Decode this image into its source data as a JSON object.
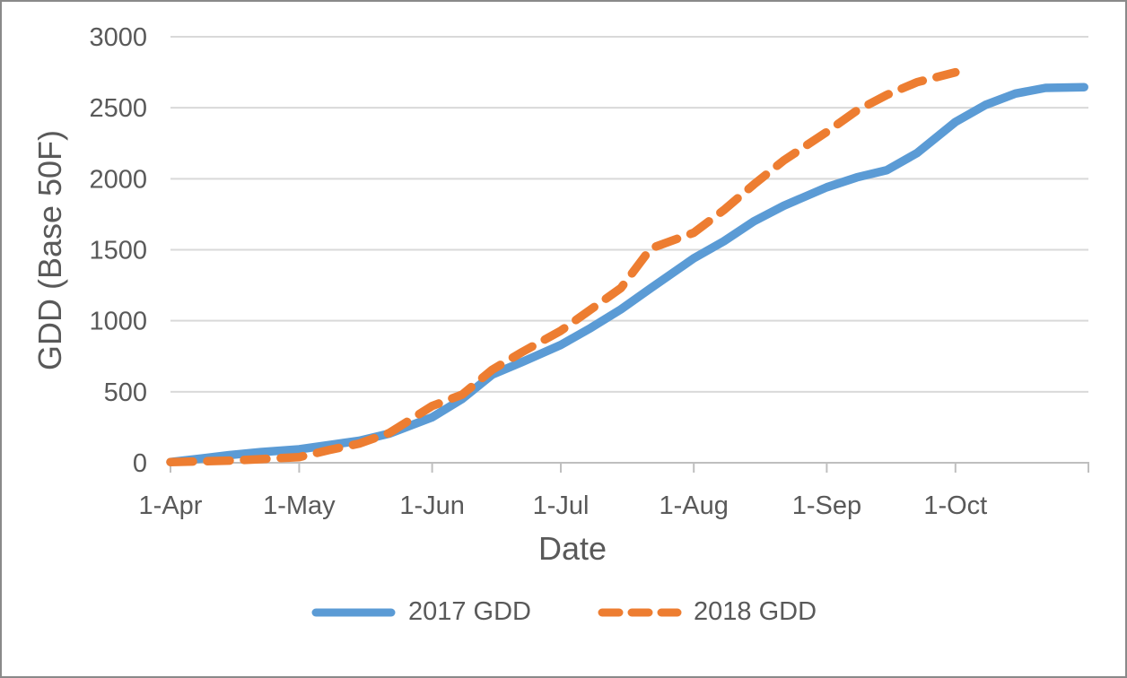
{
  "figure": {
    "background": "#ffffff",
    "border_color": "#8a8a8a"
  },
  "chart_data": {
    "type": "line",
    "title": "",
    "xlabel": "Date",
    "ylabel": "GDD (Base 50F)",
    "ylim": [
      0,
      3000
    ],
    "ytick_step": 500,
    "x_tick_labels": [
      "1-Apr",
      "1-May",
      "1-Jun",
      "1-Jul",
      "1-Aug",
      "1-Sep",
      "1-Oct"
    ],
    "x_axis_end": "1-Nov",
    "grid": "horizontal",
    "legend_position": "bottom-center",
    "colors": {
      "text": "#595959",
      "gridline": "#d9d9d9",
      "axis": "#bfbfbf"
    },
    "series": [
      {
        "name": "2017 GDD",
        "color": "#5b9bd5",
        "style": "solid",
        "dates": [
          "1-Apr",
          "8-Apr",
          "15-Apr",
          "22-Apr",
          "1-May",
          "8-May",
          "15-May",
          "22-May",
          "1-Jun",
          "8-Jun",
          "15-Jun",
          "22-Jun",
          "1-Jul",
          "8-Jul",
          "15-Jul",
          "22-Jul",
          "1-Aug",
          "8-Aug",
          "15-Aug",
          "22-Aug",
          "1-Sep",
          "8-Sep",
          "15-Sep",
          "22-Sep",
          "1-Oct",
          "8-Oct",
          "15-Oct",
          "22-Oct",
          "31-Oct"
        ],
        "values": [
          5,
          30,
          55,
          75,
          95,
          125,
          155,
          205,
          320,
          450,
          620,
          710,
          830,
          950,
          1080,
          1230,
          1440,
          1560,
          1700,
          1810,
          1940,
          2010,
          2060,
          2180,
          2400,
          2520,
          2600,
          2640,
          2645
        ]
      },
      {
        "name": "2018 GDD",
        "color": "#ed7d31",
        "style": "dashed",
        "dates": [
          "1-Apr",
          "8-Apr",
          "15-Apr",
          "22-Apr",
          "1-May",
          "8-May",
          "15-May",
          "22-May",
          "1-Jun",
          "8-Jun",
          "15-Jun",
          "22-Jun",
          "1-Jul",
          "8-Jul",
          "15-Jul",
          "22-Jul",
          "1-Aug",
          "8-Aug",
          "15-Aug",
          "22-Aug",
          "1-Sep",
          "8-Sep",
          "15-Sep",
          "22-Sep",
          "1-Oct"
        ],
        "values": [
          5,
          10,
          15,
          25,
          40,
          90,
          135,
          210,
          400,
          480,
          655,
          780,
          930,
          1080,
          1230,
          1510,
          1620,
          1780,
          1960,
          2130,
          2330,
          2480,
          2590,
          2680,
          2750
        ]
      }
    ]
  }
}
